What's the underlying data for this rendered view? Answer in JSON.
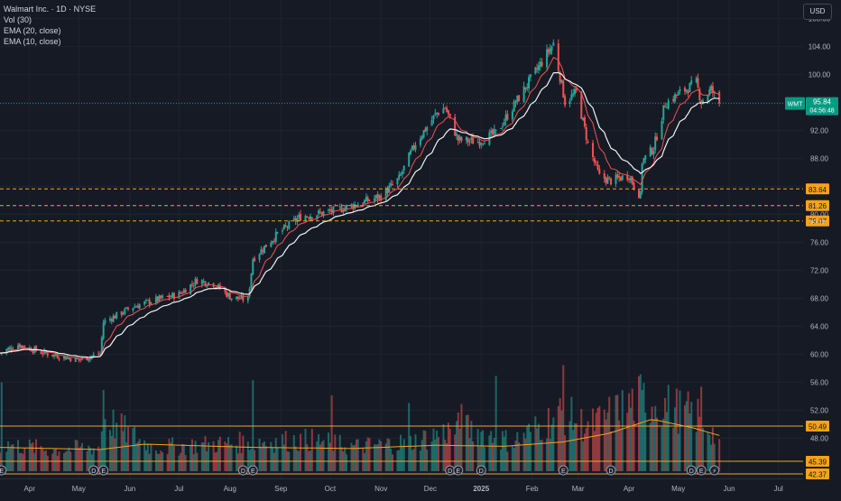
{
  "legend": {
    "symbol_line": "Walmart Inc. · 1D · NYSE",
    "vol_line": "Vol (30)",
    "ema20_line": "EMA (20, close)",
    "ema10_line": "EMA (10, close)"
  },
  "currency_button": "USD",
  "colors": {
    "background": "#161a25",
    "grid": "#1f2330",
    "up": "#26a69a",
    "down": "#ef5350",
    "ema20": "#f2f2f2",
    "ema10": "#ef5350",
    "level": "#f7a21b",
    "price_label": "#089981",
    "vol_ma": "#f7a21b"
  },
  "price_label": {
    "ticker": "WMT",
    "price": "95.84",
    "countdown": "04:56:48"
  },
  "levels": [
    {
      "value": 83.64,
      "label": "83.64",
      "style": "dashed"
    },
    {
      "value": 81.26,
      "label": "81.26",
      "style": "dashed"
    },
    {
      "value": 79.07,
      "label": "79.07",
      "style": "dashed"
    },
    {
      "value": 50.49,
      "label": "50.49",
      "style": "solid"
    },
    {
      "value": 45.39,
      "label": "45.39",
      "style": "solid"
    },
    {
      "value": 42.37,
      "label": "42.37",
      "style": "solid"
    }
  ],
  "level_small_label": "80.19",
  "chart_data": {
    "type": "candlestick",
    "title": "Walmart Inc. · 1D · NYSE",
    "y_ticks": [
      "108.00",
      "104.00",
      "100.00",
      "96.00",
      "92.00",
      "88.00",
      "84.00",
      "80.00",
      "76.00",
      "72.00",
      "68.00",
      "64.00",
      "60.00",
      "56.00",
      "52.00",
      "48.00"
    ],
    "y_range": [
      43.3,
      109.6
    ],
    "x_ticks": [
      "Apr",
      "May",
      "Jun",
      "Jul",
      "Aug",
      "Sep",
      "Oct",
      "Nov",
      "Dec",
      "2025",
      "Feb",
      "Mar",
      "Apr",
      "May",
      "Jun",
      "Jul"
    ],
    "x_tick_dates": [
      "2024-04-01",
      "2024-05-01",
      "2024-06-01",
      "2024-07-01",
      "2024-08-01",
      "2024-09-01",
      "2024-10-01",
      "2024-11-01",
      "2024-12-01",
      "2025-01-01",
      "2025-02-01",
      "2025-03-01",
      "2025-04-01",
      "2025-05-01",
      "2025-06-01",
      "2025-07-01"
    ],
    "x_range": [
      "2024-03-14",
      "2025-07-16"
    ],
    "close_path": [
      [
        "2024-03-14",
        60.2
      ],
      [
        "2024-03-25",
        61.4
      ],
      [
        "2024-04-08",
        60.3
      ],
      [
        "2024-04-22",
        59.6
      ],
      [
        "2024-05-01",
        59.2
      ],
      [
        "2024-05-14",
        60.1
      ],
      [
        "2024-05-16",
        64.6
      ],
      [
        "2024-06-03",
        66.8
      ],
      [
        "2024-06-14",
        67.6
      ],
      [
        "2024-07-01",
        68.6
      ],
      [
        "2024-07-12",
        70.6
      ],
      [
        "2024-07-22",
        70.1
      ],
      [
        "2024-08-02",
        68.1
      ],
      [
        "2024-08-12",
        67.8
      ],
      [
        "2024-08-15",
        73.7
      ],
      [
        "2024-08-30",
        77.2
      ],
      [
        "2024-09-13",
        79.7
      ],
      [
        "2024-10-01",
        80.4
      ],
      [
        "2024-10-15",
        81.3
      ],
      [
        "2024-11-01",
        82.6
      ],
      [
        "2024-11-12",
        85.1
      ],
      [
        "2024-11-22",
        90.2
      ],
      [
        "2024-12-05",
        94.5
      ],
      [
        "2024-12-10",
        95.3
      ],
      [
        "2024-12-18",
        90.6
      ],
      [
        "2024-12-30",
        90.4
      ],
      [
        "2025-01-10",
        91.6
      ],
      [
        "2025-01-27",
        97.8
      ],
      [
        "2025-02-07",
        101.8
      ],
      [
        "2025-02-14",
        104.4
      ],
      [
        "2025-02-21",
        96.1
      ],
      [
        "2025-02-28",
        97.4
      ],
      [
        "2025-03-07",
        90.1
      ],
      [
        "2025-03-14",
        85.4
      ],
      [
        "2025-03-21",
        84.8
      ],
      [
        "2025-04-01",
        85.6
      ],
      [
        "2025-04-04",
        84.1
      ],
      [
        "2025-04-08",
        82.6
      ],
      [
        "2025-04-09",
        87.6
      ],
      [
        "2025-04-16",
        89.5
      ],
      [
        "2025-04-23",
        95.8
      ],
      [
        "2025-05-01",
        97.2
      ],
      [
        "2025-05-12",
        98.8
      ],
      [
        "2025-05-15",
        96.1
      ],
      [
        "2025-05-21",
        97.9
      ],
      [
        "2025-05-26",
        95.84
      ]
    ],
    "volume_path": [
      [
        "2024-03-14",
        0.28
      ],
      [
        "2024-04-15",
        0.22
      ],
      [
        "2024-05-14",
        0.25
      ],
      [
        "2024-05-16",
        0.55
      ],
      [
        "2024-06-15",
        0.24
      ],
      [
        "2024-08-15",
        0.3
      ],
      [
        "2024-09-20",
        0.32
      ],
      [
        "2024-10-15",
        0.25
      ],
      [
        "2024-11-20",
        0.3
      ],
      [
        "2024-12-20",
        0.45
      ],
      [
        "2025-01-20",
        0.3
      ],
      [
        "2025-02-20",
        0.6
      ],
      [
        "2025-03-07",
        0.45
      ],
      [
        "2025-04-09",
        0.75
      ],
      [
        "2025-05-15",
        0.55
      ],
      [
        "2025-05-26",
        0.3
      ]
    ],
    "volume_ma_path": [
      [
        "2024-03-14",
        0.22
      ],
      [
        "2024-05-14",
        0.2
      ],
      [
        "2024-06-10",
        0.25
      ],
      [
        "2024-08-15",
        0.22
      ],
      [
        "2024-10-15",
        0.21
      ],
      [
        "2024-12-05",
        0.24
      ],
      [
        "2025-01-15",
        0.23
      ],
      [
        "2025-02-20",
        0.27
      ],
      [
        "2025-03-20",
        0.35
      ],
      [
        "2025-04-15",
        0.48
      ],
      [
        "2025-05-10",
        0.4
      ],
      [
        "2025-05-26",
        0.33
      ]
    ],
    "volume_spikes": [
      [
        "2024-03-15",
        0.82
      ],
      [
        "2024-05-16",
        0.75
      ],
      [
        "2024-08-15",
        0.84
      ],
      [
        "2024-10-02",
        0.7
      ],
      [
        "2024-11-18",
        0.63
      ],
      [
        "2024-12-20",
        0.62
      ],
      [
        "2025-01-10",
        0.88
      ],
      [
        "2025-02-20",
        0.98
      ],
      [
        "2025-04-09",
        0.75
      ],
      [
        "2025-05-15",
        0.78
      ]
    ],
    "events": [
      {
        "date": "2024-03-15",
        "label": "E"
      },
      {
        "date": "2024-05-10",
        "label": "D"
      },
      {
        "date": "2024-05-16",
        "label": "E"
      },
      {
        "date": "2024-08-09",
        "label": "D"
      },
      {
        "date": "2024-08-15",
        "label": "E"
      },
      {
        "date": "2024-12-13",
        "label": "D"
      },
      {
        "date": "2024-12-18",
        "label": "E"
      },
      {
        "date": "2025-01-01",
        "label": "D"
      },
      {
        "date": "2025-02-20",
        "label": "E"
      },
      {
        "date": "2025-03-21",
        "label": "D"
      },
      {
        "date": "2025-05-09",
        "label": "D"
      },
      {
        "date": "2025-05-15",
        "label": "E"
      },
      {
        "date": "2025-05-23",
        "label": "⚡"
      }
    ]
  }
}
